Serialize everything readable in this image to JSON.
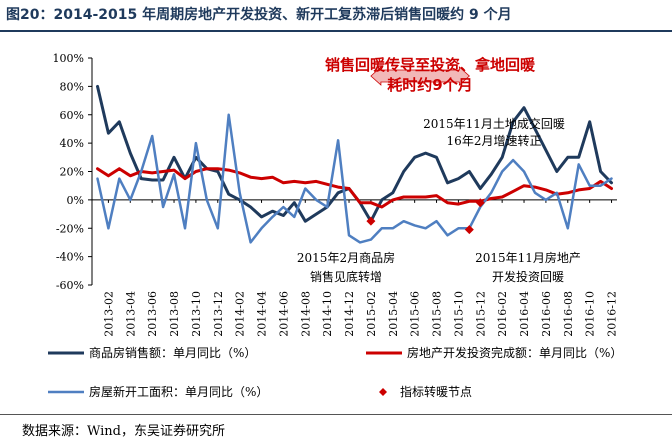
{
  "figure_title": "图20：2014-2015 年周期房地产开发投资、新开工复苏滞后销售回暖约 9 个月",
  "source": "数据来源：Wind，东吴证券研究所",
  "colors": {
    "sales": "#1f3a5c",
    "investment": "#cc0000",
    "new_starts": "#4f7fc1",
    "turning_points": "#cc0000",
    "title": "#1f3a5c",
    "banner": "#cc0000",
    "arrow_fill": "#f2b8b8"
  },
  "chart_data": {
    "type": "line",
    "ylim": [
      -60,
      100
    ],
    "yticks": [
      -60,
      -40,
      -20,
      0,
      20,
      40,
      60,
      80,
      100
    ],
    "ytick_labels": [
      "-60%",
      "-40%",
      "-20%",
      "0%",
      "20%",
      "40%",
      "60%",
      "80%",
      "100%"
    ],
    "x": [
      "2013-01",
      "2013-02",
      "2013-03",
      "2013-04",
      "2013-05",
      "2013-06",
      "2013-07",
      "2013-08",
      "2013-09",
      "2013-10",
      "2013-11",
      "2013-12",
      "2014-01",
      "2014-02",
      "2014-03",
      "2014-04",
      "2014-05",
      "2014-06",
      "2014-07",
      "2014-08",
      "2014-09",
      "2014-10",
      "2014-11",
      "2014-12",
      "2015-01",
      "2015-02",
      "2015-03",
      "2015-04",
      "2015-05",
      "2015-06",
      "2015-07",
      "2015-08",
      "2015-09",
      "2015-10",
      "2015-11",
      "2015-12",
      "2016-01",
      "2016-02",
      "2016-03",
      "2016-04",
      "2016-05",
      "2016-06",
      "2016-07",
      "2016-08",
      "2016-09",
      "2016-10",
      "2016-11",
      "2016-12"
    ],
    "xtick_labels": [
      "2013-02",
      "2013-04",
      "2013-06",
      "2013-08",
      "2013-10",
      "2013-12",
      "2014-02",
      "2014-04",
      "2014-06",
      "2014-08",
      "2014-10",
      "2014-12",
      "2015-02",
      "2015-04",
      "2015-06",
      "2015-08",
      "2015-10",
      "2015-12",
      "2016-02",
      "2016-04",
      "2016-06",
      "2016-08",
      "2016-10",
      "2016-12"
    ],
    "series": [
      {
        "name": "商品房销售额：单月同比（%）",
        "color_key": "sales",
        "width": 3,
        "values": [
          80,
          47,
          55,
          33,
          15,
          14,
          14,
          30,
          15,
          30,
          22,
          20,
          4,
          0,
          -5,
          -12,
          -8,
          -11,
          -2,
          -15,
          -10,
          -5,
          5,
          8,
          -2,
          -15,
          0,
          5,
          20,
          30,
          33,
          30,
          12,
          15,
          20,
          8,
          18,
          30,
          55,
          65,
          50,
          35,
          20,
          30,
          30,
          55,
          20,
          12
        ]
      },
      {
        "name": "房地产开发投资完成额：单月同比（%）",
        "color_key": "investment",
        "width": 3,
        "values": [
          22,
          17,
          22,
          17,
          20,
          19,
          20,
          21,
          15,
          20,
          22,
          22,
          21,
          19,
          16,
          15,
          16,
          12,
          13,
          12,
          13,
          11,
          9,
          8,
          -2,
          -2,
          -5,
          0,
          2,
          2,
          2,
          3,
          -2,
          -3,
          -1,
          -1,
          1,
          2,
          6,
          10,
          9,
          7,
          4,
          5,
          7,
          8,
          13,
          8
        ]
      },
      {
        "name": "房屋新开工面积：单月同比（%）",
        "color_key": "new_starts",
        "width": 2.5,
        "values": [
          15,
          -20,
          15,
          0,
          20,
          45,
          -5,
          18,
          -20,
          40,
          0,
          -20,
          60,
          5,
          -30,
          -20,
          -12,
          -5,
          -12,
          8,
          0,
          -5,
          42,
          -25,
          -30,
          -28,
          -20,
          -20,
          -15,
          -18,
          -20,
          -15,
          -25,
          -20,
          -20,
          -5,
          5,
          20,
          28,
          20,
          5,
          0,
          5,
          -20,
          25,
          10,
          10,
          15
        ]
      }
    ],
    "markers": {
      "name": "指标转暖节点",
      "points": [
        {
          "x": "2015-02",
          "y": -15
        },
        {
          "x": "2015-11",
          "y": -21
        },
        {
          "x": "2015-12",
          "y": -2
        }
      ]
    },
    "annotations": {
      "banner_line1": "销售回暖传导至投资、拿地回暖",
      "banner_line2": "耗时约9个月",
      "land": [
        "2015年11月土地成交回暖",
        "16年2月增速转正"
      ],
      "sales_turn": [
        "2015年2月商品房",
        "销售见底转增"
      ],
      "invest_turn": [
        "2015年11月房地产",
        "开发投资回暖"
      ]
    },
    "legend_position": "bottom"
  }
}
